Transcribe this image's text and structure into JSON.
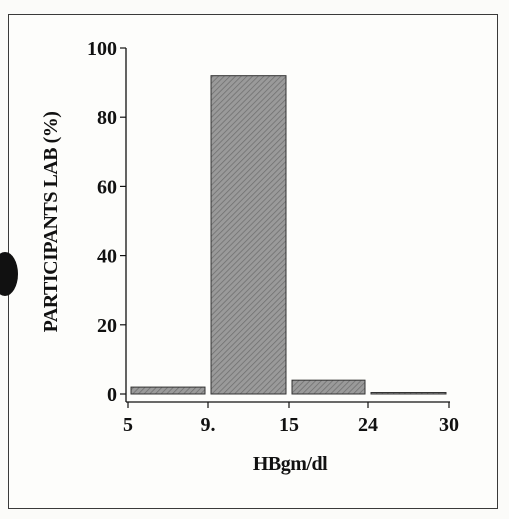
{
  "chart_data": {
    "type": "bar",
    "title": "",
    "xlabel": "HBgm/dl",
    "ylabel": "PARTICIPANTS LAB  (%)",
    "x_tick_labels": [
      "5",
      "9.",
      "15",
      "24",
      "30"
    ],
    "x_edges": [
      5,
      9,
      15,
      24,
      30
    ],
    "categories": [
      "5-9",
      "9-15",
      "15-24",
      "24-30"
    ],
    "values": [
      2,
      92,
      4,
      0
    ],
    "y_ticks": [
      0,
      20,
      40,
      60,
      80,
      100
    ],
    "ylim": [
      0,
      100
    ],
    "grid": false,
    "colors": {
      "bar_fill": "#8a8a8a",
      "bar_hatch": "#6e6e6e",
      "axis": "#111111"
    }
  }
}
